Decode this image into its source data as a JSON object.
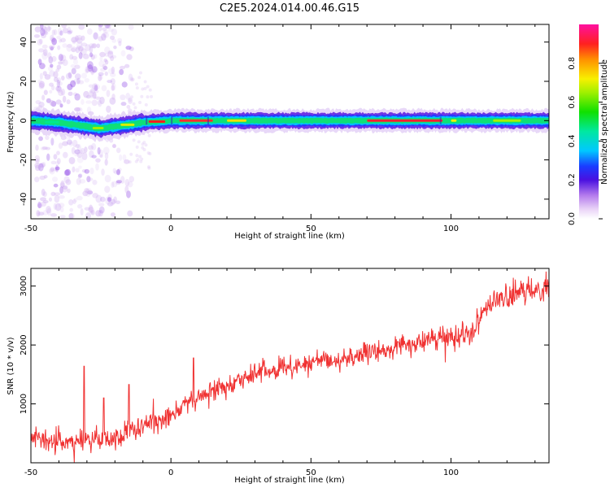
{
  "title": "C2E5.2024.014.00.46.G15",
  "chart_data": [
    {
      "type": "heatmap",
      "xlabel": "Height of straight line (km)",
      "ylabel": "Frequency (Hz)",
      "xlim": [
        -50,
        135
      ],
      "ylim": [
        -50,
        49
      ],
      "x_ticks": [
        -50,
        0,
        50,
        100
      ],
      "y_ticks": [
        -40,
        -20,
        0,
        20,
        40
      ],
      "grid": false,
      "colorbar": {
        "label": "Normalized spectral amplitude",
        "range": [
          0,
          1
        ],
        "ticks": [
          "0.0",
          "0.2",
          "0.4",
          "0.6",
          "0.8"
        ]
      },
      "band_center_hz": [
        [
          -50,
          0
        ],
        [
          -40,
          -1
        ],
        [
          -30,
          -3
        ],
        [
          -25,
          -4
        ],
        [
          -20,
          -3
        ],
        [
          -15,
          -2
        ],
        [
          -10,
          -1
        ],
        [
          0,
          0
        ],
        [
          20,
          0
        ],
        [
          50,
          0
        ],
        [
          100,
          0
        ],
        [
          135,
          0
        ]
      ],
      "band_halfwidth_hz": 3
    },
    {
      "type": "line",
      "xlabel": "Height of straight line (km)",
      "ylabel": "SNR (10 * v/v)",
      "xlim": [
        -50,
        135
      ],
      "ylim": [
        0,
        3300
      ],
      "x_ticks": [
        -50,
        0,
        50,
        100
      ],
      "y_ticks": [
        1000,
        2000,
        3000
      ],
      "grid": false,
      "series": [
        {
          "color": "#f03232",
          "trend": [
            [
              -50,
              400
            ],
            [
              -40,
              350
            ],
            [
              -30,
              380
            ],
            [
              -20,
              420
            ],
            [
              -10,
              600
            ],
            [
              0,
              850
            ],
            [
              10,
              1100
            ],
            [
              20,
              1350
            ],
            [
              30,
              1500
            ],
            [
              40,
              1600
            ],
            [
              50,
              1700
            ],
            [
              60,
              1750
            ],
            [
              70,
              1850
            ],
            [
              80,
              1950
            ],
            [
              90,
              2050
            ],
            [
              100,
              2150
            ],
            [
              108,
              2250
            ],
            [
              112,
              2650
            ],
            [
              120,
              2800
            ],
            [
              130,
              2950
            ],
            [
              135,
              3000
            ]
          ],
          "spikes": [
            [
              -31,
              1640
            ],
            [
              -24,
              1100
            ],
            [
              -15,
              1330
            ],
            [
              8,
              1780
            ]
          ]
        }
      ]
    }
  ]
}
